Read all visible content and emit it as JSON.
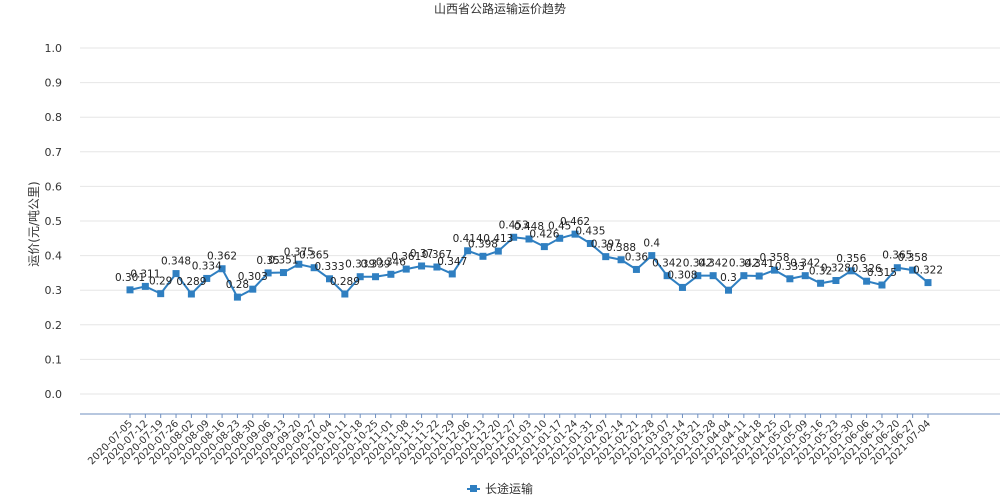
{
  "chart_data": {
    "type": "line",
    "title": "山西省公路运输运价趋势",
    "ylabel": "运价(元/吨公里)",
    "xlabel": "",
    "ylim": [
      0.0,
      1.0
    ],
    "yticks": [
      "0.0",
      "0.1",
      "0.2",
      "0.3",
      "0.4",
      "0.5",
      "0.6",
      "0.7",
      "0.8",
      "0.9",
      "1.0"
    ],
    "grid": true,
    "legend_position": "bottom",
    "categories": [
      "2020-07-05",
      "2020-07-12",
      "2020-07-19",
      "2020-07-26",
      "2020-08-02",
      "2020-08-09",
      "2020-08-16",
      "2020-08-23",
      "2020-08-30",
      "2020-09-06",
      "2020-09-13",
      "2020-09-20",
      "2020-09-27",
      "2020-10-04",
      "2020-10-11",
      "2020-10-18",
      "2020-10-25",
      "2020-11-01",
      "2020-11-08",
      "2020-11-15",
      "2020-11-22",
      "2020-11-29",
      "2020-12-06",
      "2020-12-13",
      "2020-12-20",
      "2020-12-27",
      "2021-01-03",
      "2021-01-10",
      "2021-01-17",
      "2021-01-24",
      "2021-01-31",
      "2021-02-07",
      "2021-02-14",
      "2021-02-21",
      "2021-02-28",
      "2021-03-07",
      "2021-03-14",
      "2021-03-21",
      "2021-03-28",
      "2021-04-04",
      "2021-04-11",
      "2021-04-18",
      "2021-04-25",
      "2021-05-02",
      "2021-05-09",
      "2021-05-16",
      "2021-05-23",
      "2021-05-30",
      "2021-06-06",
      "2021-06-13",
      "2021-06-20",
      "2021-06-27",
      "2021-07-04"
    ],
    "series": [
      {
        "name": "长途运输",
        "color": "#2f7fc1",
        "values": [
          0.301,
          0.311,
          0.29,
          0.348,
          0.289,
          0.334,
          0.362,
          0.28,
          0.303,
          0.35,
          0.351,
          0.375,
          0.365,
          0.333,
          0.289,
          0.339,
          0.339,
          0.346,
          0.361,
          0.37,
          0.367,
          0.347,
          0.414,
          0.398,
          0.413,
          0.453,
          0.448,
          0.426,
          0.45,
          0.462,
          0.435,
          0.397,
          0.388,
          0.36,
          0.4,
          0.342,
          0.308,
          0.342,
          0.342,
          0.3,
          0.342,
          0.341,
          0.358,
          0.333,
          0.342,
          0.32,
          0.328,
          0.356,
          0.326,
          0.315,
          0.365,
          0.358,
          0.322
        ]
      }
    ]
  }
}
